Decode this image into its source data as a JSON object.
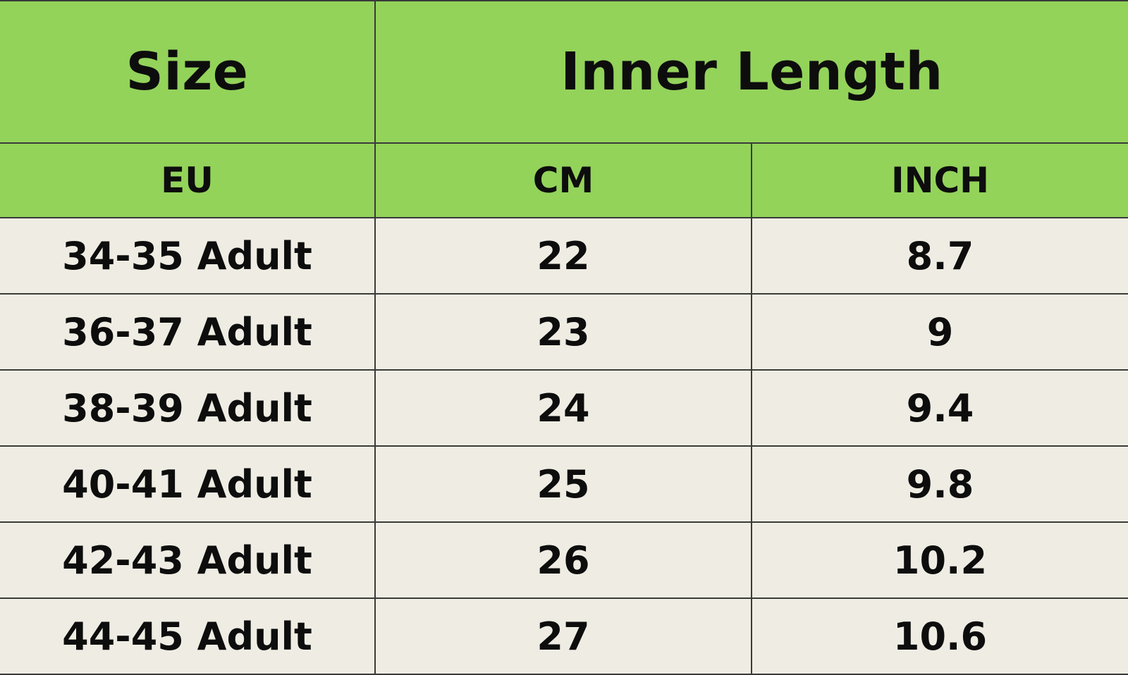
{
  "header": {
    "size_label": "Size",
    "inner_length_label": "Inner Length"
  },
  "subheader": {
    "eu_label": "EU",
    "cm_label": "CM",
    "inch_label": "INCH"
  },
  "rows": [
    {
      "eu": "34-35 Adult",
      "cm": "22",
      "inch": "8.7"
    },
    {
      "eu": "36-37 Adult",
      "cm": "23",
      "inch": "9"
    },
    {
      "eu": "38-39 Adult",
      "cm": "24",
      "inch": "9.4"
    },
    {
      "eu": "40-41 Adult",
      "cm": "25",
      "inch": "9.8"
    },
    {
      "eu": "42-43 Adult",
      "cm": "26",
      "inch": "10.2"
    },
    {
      "eu": "44-45 Adult",
      "cm": "27",
      "inch": "10.6"
    }
  ],
  "colors": {
    "header_bg": "#93d35a",
    "row_bg": "#efede3",
    "border": "#3a3a3a",
    "text": "#0d0d0d"
  }
}
